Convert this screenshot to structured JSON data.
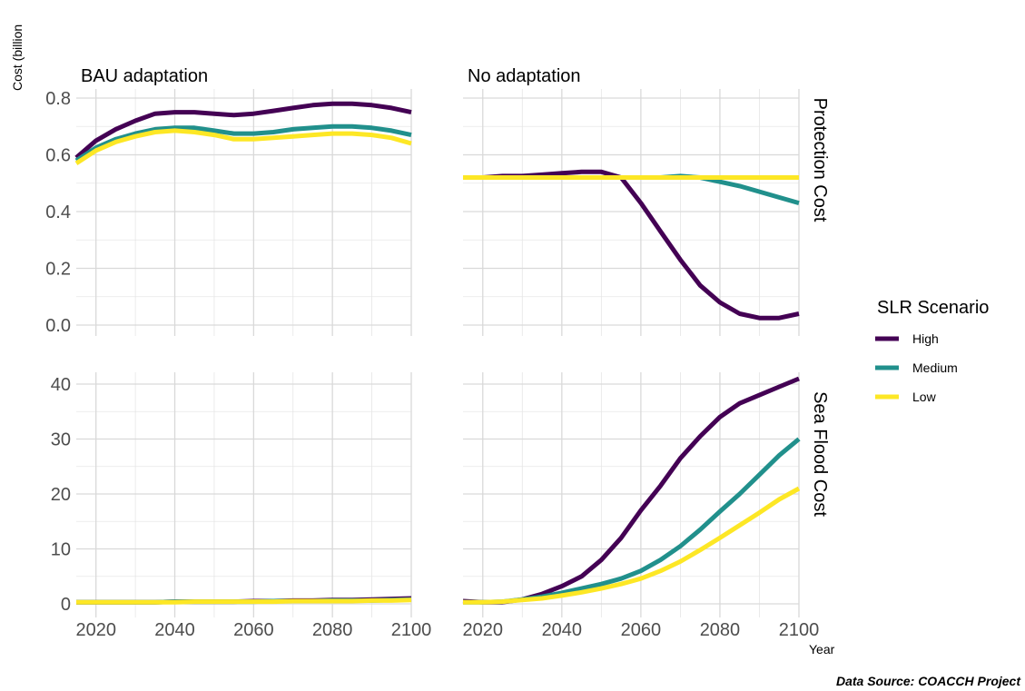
{
  "chart_data": {
    "type": "line",
    "ylabel": "Cost (billion",
    "xlabel": "Year",
    "caption": "Data Source: COACCH Project",
    "legend": {
      "title": "SLR Scenario",
      "placement": "right",
      "items": [
        {
          "name": "High",
          "color": "#440154"
        },
        {
          "name": "Medium",
          "color": "#21908C"
        },
        {
          "name": "Low",
          "color": "#FDE725"
        }
      ]
    },
    "x_ticks": [
      2020,
      2040,
      2060,
      2080,
      2100
    ],
    "xlim": [
      2015,
      2100
    ],
    "columns": [
      "BAU adaptation",
      "No adaptation"
    ],
    "rows": [
      {
        "label": "Protection Cost",
        "ylim": [
          -0.02,
          0.83
        ],
        "y_ticks": [
          "0.0",
          "0.2",
          "0.4",
          "0.6",
          "0.8"
        ]
      },
      {
        "label": "Sea Flood Cost",
        "ylim": [
          -1.5,
          41
        ],
        "y_ticks": [
          "0",
          "10",
          "20",
          "30",
          "40"
        ]
      }
    ],
    "panels": [
      {
        "column": "BAU adaptation",
        "row": "Protection Cost",
        "x": [
          2015,
          2020,
          2025,
          2030,
          2035,
          2040,
          2045,
          2050,
          2055,
          2060,
          2065,
          2070,
          2075,
          2080,
          2085,
          2090,
          2095,
          2100
        ],
        "series": [
          {
            "name": "High",
            "values": [
              0.59,
              0.65,
              0.69,
              0.72,
              0.745,
              0.75,
              0.75,
              0.745,
              0.74,
              0.745,
              0.755,
              0.765,
              0.775,
              0.78,
              0.78,
              0.775,
              0.765,
              0.75
            ]
          },
          {
            "name": "Medium",
            "values": [
              0.58,
              0.625,
              0.655,
              0.675,
              0.69,
              0.695,
              0.695,
              0.685,
              0.675,
              0.675,
              0.68,
              0.69,
              0.695,
              0.7,
              0.7,
              0.695,
              0.685,
              0.67
            ]
          },
          {
            "name": "Low",
            "values": [
              0.57,
              0.615,
              0.645,
              0.665,
              0.68,
              0.685,
              0.68,
              0.67,
              0.655,
              0.655,
              0.66,
              0.665,
              0.67,
              0.675,
              0.675,
              0.67,
              0.66,
              0.64
            ]
          }
        ]
      },
      {
        "column": "No adaptation",
        "row": "Protection Cost",
        "x": [
          2015,
          2020,
          2025,
          2030,
          2035,
          2040,
          2045,
          2050,
          2055,
          2060,
          2065,
          2070,
          2075,
          2080,
          2085,
          2090,
          2095,
          2100
        ],
        "series": [
          {
            "name": "High",
            "values": [
              0.52,
              0.52,
              0.525,
              0.525,
              0.53,
              0.535,
              0.54,
              0.54,
              0.52,
              0.43,
              0.33,
              0.23,
              0.14,
              0.08,
              0.04,
              0.025,
              0.025,
              0.04
            ]
          },
          {
            "name": "Medium",
            "values": [
              0.52,
              0.52,
              0.52,
              0.52,
              0.52,
              0.52,
              0.52,
              0.52,
              0.52,
              0.52,
              0.52,
              0.525,
              0.52,
              0.505,
              0.49,
              0.47,
              0.45,
              0.43
            ]
          },
          {
            "name": "Low",
            "values": [
              0.52,
              0.52,
              0.52,
              0.52,
              0.52,
              0.52,
              0.52,
              0.52,
              0.52,
              0.52,
              0.52,
              0.52,
              0.52,
              0.52,
              0.52,
              0.52,
              0.52,
              0.52
            ]
          }
        ]
      },
      {
        "column": "BAU adaptation",
        "row": "Sea Flood Cost",
        "x": [
          2015,
          2020,
          2025,
          2030,
          2035,
          2040,
          2045,
          2050,
          2055,
          2060,
          2065,
          2070,
          2075,
          2080,
          2085,
          2090,
          2095,
          2100
        ],
        "series": [
          {
            "name": "High",
            "values": [
              0.3,
              0.3,
              0.3,
              0.3,
              0.3,
              0.4,
              0.4,
              0.4,
              0.4,
              0.5,
              0.5,
              0.6,
              0.6,
              0.7,
              0.7,
              0.8,
              0.9,
              1.0
            ]
          },
          {
            "name": "Medium",
            "values": [
              0.3,
              0.3,
              0.3,
              0.3,
              0.3,
              0.4,
              0.4,
              0.4,
              0.4,
              0.4,
              0.5,
              0.5,
              0.5,
              0.6,
              0.6,
              0.6,
              0.7,
              0.8
            ]
          },
          {
            "name": "Low",
            "values": [
              0.3,
              0.3,
              0.3,
              0.3,
              0.3,
              0.3,
              0.4,
              0.4,
              0.4,
              0.4,
              0.4,
              0.5,
              0.5,
              0.5,
              0.5,
              0.6,
              0.6,
              0.7
            ]
          }
        ]
      },
      {
        "column": "No adaptation",
        "row": "Sea Flood Cost",
        "x": [
          2015,
          2020,
          2025,
          2030,
          2035,
          2040,
          2045,
          2050,
          2055,
          2060,
          2065,
          2070,
          2075,
          2080,
          2085,
          2090,
          2095,
          2100
        ],
        "series": [
          {
            "name": "High",
            "values": [
              0.5,
              0.3,
              0.3,
              0.8,
              1.8,
              3.2,
              5.0,
              8.0,
              12.0,
              17.0,
              21.5,
              26.5,
              30.5,
              34.0,
              36.5,
              38.0,
              39.5,
              41.0
            ]
          },
          {
            "name": "Medium",
            "values": [
              0.3,
              0.3,
              0.4,
              0.8,
              1.3,
              2.0,
              2.8,
              3.6,
              4.6,
              6.0,
              8.0,
              10.5,
              13.5,
              16.8,
              20.0,
              23.5,
              27.0,
              30.0
            ]
          },
          {
            "name": "Low",
            "values": [
              0.3,
              0.3,
              0.4,
              0.7,
              1.0,
              1.5,
              2.1,
              2.8,
              3.6,
              4.6,
              6.0,
              7.7,
              9.8,
              12.0,
              14.3,
              16.6,
              19.0,
              21.0
            ]
          }
        ]
      }
    ]
  }
}
